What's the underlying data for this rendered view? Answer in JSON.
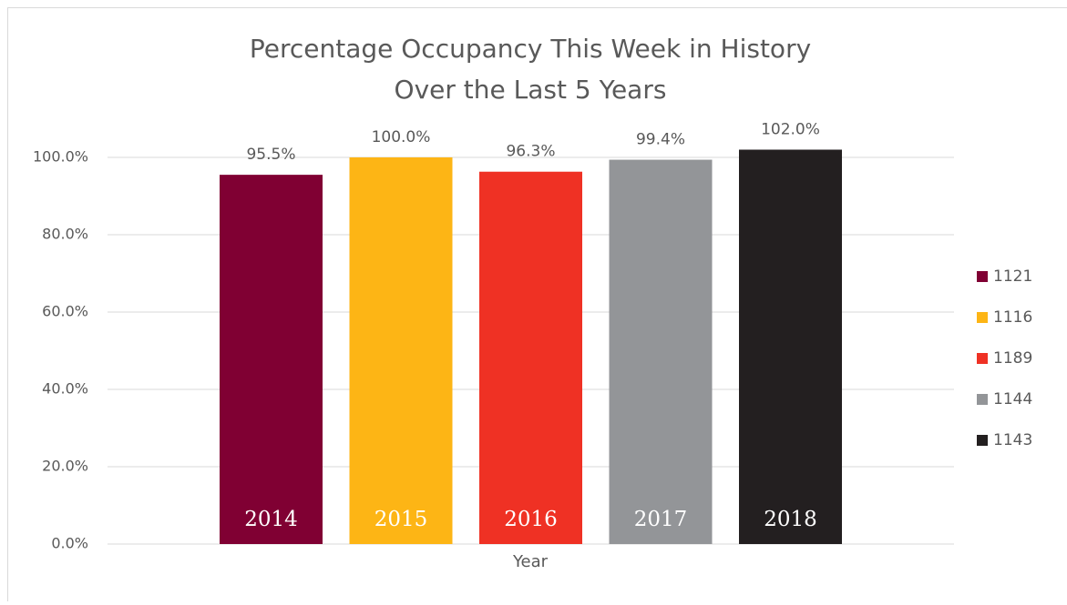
{
  "chart_data": {
    "type": "bar",
    "title": [
      "Percentage Occupancy This Week in History",
      "Over the Last 5 Years"
    ],
    "x_label": "Year",
    "series": [
      {
        "name": "1121",
        "color": "#800033",
        "label": "2014",
        "values": [
          95.5
        ],
        "value_labels": [
          "95.5%"
        ]
      },
      {
        "name": "1116",
        "color": "#fdb515",
        "label": "2015",
        "values": [
          100.0
        ],
        "value_labels": [
          "100.0%"
        ]
      },
      {
        "name": "1189",
        "color": "#ef3124",
        "label": "2016",
        "values": [
          96.3
        ],
        "value_labels": [
          "96.3%"
        ]
      },
      {
        "name": "1144",
        "color": "#939598",
        "label": "2017",
        "values": [
          99.4
        ],
        "value_labels": [
          "99.4%"
        ]
      },
      {
        "name": "1143",
        "color": "#231f20",
        "label": "2018",
        "values": [
          102.0
        ],
        "value_labels": [
          "102.0%"
        ]
      }
    ],
    "ylim": [
      0,
      105
    ],
    "yticks": [
      {
        "value": 0,
        "label": "0.0%"
      },
      {
        "value": 20,
        "label": "20.0%"
      },
      {
        "value": 40,
        "label": "40.0%"
      },
      {
        "value": 60,
        "label": "60.0%"
      },
      {
        "value": 80,
        "label": "80.0%"
      },
      {
        "value": 100,
        "label": "100.0%"
      }
    ],
    "grid": true,
    "legend": "right"
  }
}
